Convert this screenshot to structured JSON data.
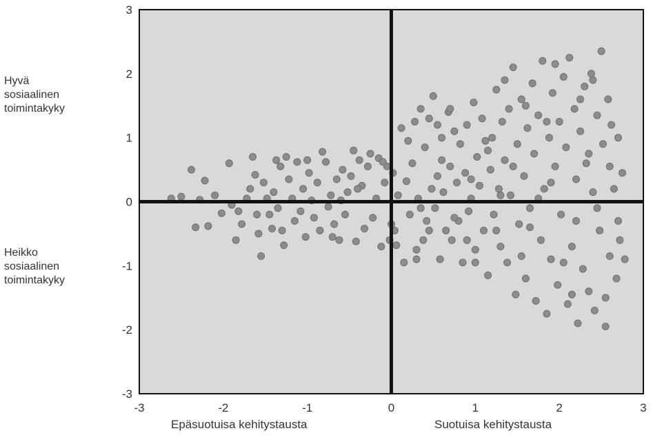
{
  "chart_data": {
    "type": "scatter",
    "xlim": [
      -3,
      3
    ],
    "ylim": [
      -3,
      3
    ],
    "xticks": [
      "-3",
      "-2",
      "-1",
      "0",
      "1",
      "2",
      "3"
    ],
    "yticks": [
      "3",
      "2",
      "1",
      "0",
      "-1",
      "-2",
      "-3"
    ],
    "grid": false,
    "background": "#d9d9d9",
    "point_color": "#8c8c8c",
    "axis_color": "#111111",
    "y_axis_annotations": {
      "top": "Hyvä\nsosiaalinen\ntoimintakyky",
      "bottom": "Heikko\nsosiaalinen\ntoimintakyky"
    },
    "x_axis_annotations": {
      "left": "Epäsuotuisa kehitystausta",
      "right": "Suotuisa kehitystausta"
    },
    "points": [
      [
        -2.62,
        0.05
      ],
      [
        -2.5,
        0.08
      ],
      [
        -2.38,
        0.5
      ],
      [
        -2.33,
        -0.4
      ],
      [
        -2.28,
        0.03
      ],
      [
        -2.22,
        0.33
      ],
      [
        -2.18,
        -0.38
      ],
      [
        -2.1,
        0.1
      ],
      [
        -2.02,
        -0.18
      ],
      [
        -1.93,
        0.6
      ],
      [
        -1.9,
        -0.05
      ],
      [
        -1.85,
        -0.6
      ],
      [
        -1.82,
        -0.15
      ],
      [
        -1.78,
        -0.35
      ],
      [
        -1.72,
        0.05
      ],
      [
        -1.68,
        0.2
      ],
      [
        -1.65,
        0.7
      ],
      [
        -1.62,
        0.42
      ],
      [
        -1.58,
        -0.5
      ],
      [
        -1.55,
        -0.85
      ],
      [
        -1.52,
        0.3
      ],
      [
        -1.48,
        0.05
      ],
      [
        -1.45,
        -0.2
      ],
      [
        -1.42,
        -0.42
      ],
      [
        -1.4,
        0.15
      ],
      [
        -1.37,
        0.65
      ],
      [
        -1.35,
        -0.1
      ],
      [
        -1.32,
        0.55
      ],
      [
        -1.28,
        -0.68
      ],
      [
        -1.25,
        0.7
      ],
      [
        -1.22,
        0.35
      ],
      [
        -1.18,
        0.05
      ],
      [
        -1.15,
        -0.3
      ],
      [
        -1.12,
        0.62
      ],
      [
        -1.08,
        -0.15
      ],
      [
        -1.05,
        0.2
      ],
      [
        -1.02,
        -0.55
      ],
      [
        -0.98,
        0.45
      ],
      [
        -0.95,
        0.02
      ],
      [
        -0.92,
        -0.25
      ],
      [
        -0.88,
        0.3
      ],
      [
        -0.85,
        -0.45
      ],
      [
        -0.82,
        0.78
      ],
      [
        -0.78,
        0.62
      ],
      [
        -0.75,
        -0.08
      ],
      [
        -0.72,
        0.1
      ],
      [
        -0.68,
        -0.35
      ],
      [
        -0.65,
        0.35
      ],
      [
        -0.62,
        -0.6
      ],
      [
        -0.58,
        0.5
      ],
      [
        -0.55,
        -0.2
      ],
      [
        -0.52,
        0.15
      ],
      [
        -0.48,
        0.4
      ],
      [
        -0.45,
        0.8
      ],
      [
        -0.42,
        -0.62
      ],
      [
        -0.38,
        0.65
      ],
      [
        -0.35,
        0.25
      ],
      [
        -0.32,
        -0.42
      ],
      [
        -0.28,
        0.55
      ],
      [
        -0.25,
        0.75
      ],
      [
        -0.22,
        -0.25
      ],
      [
        -0.18,
        0.05
      ],
      [
        -0.15,
        0.68
      ],
      [
        -0.12,
        -0.7
      ],
      [
        -0.08,
        0.3
      ],
      [
        -0.05,
        0.55
      ],
      [
        -0.02,
        -0.6
      ],
      [
        0.02,
        0.45
      ],
      [
        0.04,
        -0.45
      ],
      [
        0.06,
        -0.68
      ],
      [
        0.08,
        0.1
      ],
      [
        0.12,
        1.15
      ],
      [
        0.15,
        -0.95
      ],
      [
        0.18,
        0.32
      ],
      [
        0.22,
        -0.2
      ],
      [
        0.25,
        0.6
      ],
      [
        0.28,
        1.25
      ],
      [
        0.3,
        -0.9
      ],
      [
        0.32,
        0.05
      ],
      [
        0.35,
        1.45
      ],
      [
        0.38,
        -0.6
      ],
      [
        0.4,
        0.85
      ],
      [
        0.42,
        -0.3
      ],
      [
        0.45,
        1.3
      ],
      [
        0.48,
        0.2
      ],
      [
        0.5,
        1.65
      ],
      [
        0.52,
        -0.1
      ],
      [
        0.55,
        0.4
      ],
      [
        0.58,
        -0.9
      ],
      [
        0.6,
        1.0
      ],
      [
        0.62,
        0.15
      ],
      [
        0.65,
        -0.45
      ],
      [
        0.68,
        1.4
      ],
      [
        0.7,
        0.55
      ],
      [
        0.72,
        -0.6
      ],
      [
        0.75,
        1.1
      ],
      [
        0.78,
        0.3
      ],
      [
        0.8,
        -0.3
      ],
      [
        0.82,
        0.9
      ],
      [
        0.85,
        -0.95
      ],
      [
        0.88,
        0.45
      ],
      [
        0.9,
        1.2
      ],
      [
        0.92,
        -0.15
      ],
      [
        0.95,
        0.05
      ],
      [
        0.98,
        1.55
      ],
      [
        1.0,
        -0.75
      ],
      [
        1.02,
        0.7
      ],
      [
        1.05,
        0.25
      ],
      [
        1.08,
        1.3
      ],
      [
        1.1,
        -0.45
      ],
      [
        1.12,
        0.95
      ],
      [
        1.15,
        -1.15
      ],
      [
        1.18,
        0.5
      ],
      [
        1.2,
        1.0
      ],
      [
        1.22,
        -0.2
      ],
      [
        1.25,
        1.75
      ],
      [
        1.28,
        0.2
      ],
      [
        1.3,
        -0.7
      ],
      [
        1.32,
        1.25
      ],
      [
        1.35,
        0.65
      ],
      [
        1.38,
        -0.95
      ],
      [
        1.4,
        1.45
      ],
      [
        1.42,
        0.1
      ],
      [
        1.45,
        2.1
      ],
      [
        1.48,
        -1.45
      ],
      [
        1.5,
        0.9
      ],
      [
        1.52,
        -0.35
      ],
      [
        1.55,
        1.6
      ],
      [
        1.58,
        0.4
      ],
      [
        1.6,
        -1.2
      ],
      [
        1.62,
        1.15
      ],
      [
        1.65,
        -0.1
      ],
      [
        1.68,
        1.85
      ],
      [
        1.7,
        0.75
      ],
      [
        1.72,
        -1.55
      ],
      [
        1.75,
        1.35
      ],
      [
        1.78,
        -0.6
      ],
      [
        1.8,
        2.2
      ],
      [
        1.82,
        0.2
      ],
      [
        1.85,
        -1.75
      ],
      [
        1.88,
        1.0
      ],
      [
        1.9,
        -0.9
      ],
      [
        1.92,
        1.7
      ],
      [
        1.95,
        0.55
      ],
      [
        1.98,
        -1.3
      ],
      [
        2.0,
        1.25
      ],
      [
        2.02,
        -0.2
      ],
      [
        2.05,
        1.95
      ],
      [
        2.08,
        0.85
      ],
      [
        2.1,
        -1.6
      ],
      [
        2.12,
        2.25
      ],
      [
        2.15,
        -0.7
      ],
      [
        2.18,
        1.45
      ],
      [
        2.2,
        0.35
      ],
      [
        2.22,
        -1.9
      ],
      [
        2.25,
        1.1
      ],
      [
        2.28,
        -1.05
      ],
      [
        2.3,
        1.8
      ],
      [
        2.32,
        0.6
      ],
      [
        2.35,
        -1.4
      ],
      [
        2.38,
        2.0
      ],
      [
        2.4,
        0.15
      ],
      [
        2.42,
        -1.7
      ],
      [
        2.45,
        1.35
      ],
      [
        2.48,
        -0.45
      ],
      [
        2.5,
        2.35
      ],
      [
        2.52,
        0.9
      ],
      [
        2.55,
        -1.95
      ],
      [
        2.58,
        1.6
      ],
      [
        2.6,
        -0.85
      ],
      [
        2.62,
        1.2
      ],
      [
        2.65,
        0.2
      ],
      [
        2.68,
        -1.2
      ],
      [
        2.7,
        1.0
      ],
      [
        2.72,
        -0.6
      ],
      [
        2.75,
        0.45
      ],
      [
        2.78,
        -0.9
      ],
      [
        -0.1,
        0.62
      ],
      [
        0.0,
        -0.35
      ],
      [
        0.2,
        0.95
      ],
      [
        0.35,
        -0.1
      ],
      [
        0.55,
        1.2
      ],
      [
        0.75,
        -0.25
      ],
      [
        0.95,
        0.35
      ],
      [
        1.15,
        0.8
      ],
      [
        1.35,
        1.9
      ],
      [
        1.55,
        -0.85
      ],
      [
        1.75,
        0.05
      ],
      [
        1.95,
        2.15
      ],
      [
        2.15,
        -1.45
      ],
      [
        2.35,
        0.75
      ],
      [
        2.55,
        -1.5
      ],
      [
        2.7,
        -0.3
      ],
      [
        -1.0,
        0.65
      ],
      [
        -0.7,
        -0.55
      ],
      [
        -0.4,
        0.2
      ],
      [
        -1.6,
        -0.2
      ],
      [
        -1.3,
        -0.45
      ],
      [
        -0.6,
        0.02
      ],
      [
        0.3,
        -0.75
      ],
      [
        0.6,
        0.65
      ],
      [
        0.9,
        -0.6
      ],
      [
        1.25,
        -0.45
      ],
      [
        1.45,
        0.55
      ],
      [
        1.65,
        -0.4
      ],
      [
        1.85,
        1.25
      ],
      [
        2.05,
        -0.95
      ],
      [
        2.25,
        1.6
      ],
      [
        2.45,
        -0.1
      ],
      [
        2.6,
        0.55
      ],
      [
        2.4,
        1.9
      ],
      [
        2.2,
        -0.3
      ],
      [
        1.9,
        0.3
      ],
      [
        1.6,
        1.5
      ],
      [
        1.3,
        0.1
      ],
      [
        1.0,
        -0.95
      ],
      [
        0.7,
        1.45
      ],
      [
        0.45,
        -0.45
      ]
    ]
  }
}
